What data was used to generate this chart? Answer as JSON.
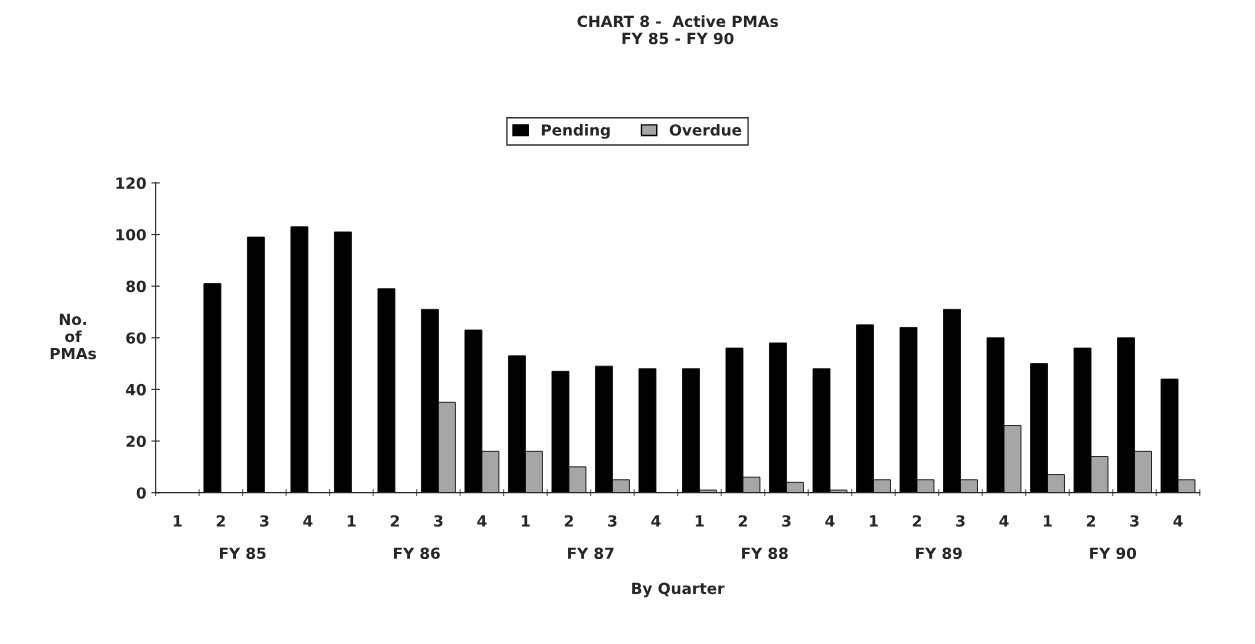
{
  "chart_data": {
    "type": "bar",
    "title": "CHART 8 -  Active PMAs\nFY 85 - FY 90",
    "xlabel": "By Quarter",
    "ylabel": "No.\nof\nPMAs",
    "categories": [
      "1",
      "2",
      "3",
      "4",
      "1",
      "2",
      "3",
      "4",
      "1",
      "2",
      "3",
      "4",
      "1",
      "2",
      "3",
      "4",
      "1",
      "2",
      "3",
      "4",
      "1",
      "2",
      "3",
      "4"
    ],
    "series": [
      {
        "name": "Pending",
        "color": "#000000",
        "values": [
          null,
          81,
          99,
          103,
          101,
          79,
          71,
          63,
          53,
          47,
          49,
          48,
          48,
          56,
          58,
          48,
          65,
          64,
          71,
          60,
          50,
          56,
          60,
          44
        ]
      },
      {
        "name": "Overdue",
        "color": "#a6a6a6",
        "values": [
          null,
          null,
          null,
          null,
          null,
          null,
          35,
          16,
          16,
          10,
          5,
          null,
          1,
          6,
          4,
          1,
          5,
          5,
          5,
          26,
          7,
          14,
          16,
          5
        ]
      }
    ],
    "annotations": [
      "FY 85",
      "FY 86",
      "FY 87",
      "FY 88",
      "FY 89",
      "FY 90"
    ],
    "ylim": [
      0,
      120
    ],
    "yticks": [
      0,
      20,
      40,
      60,
      80,
      100,
      120
    ],
    "grid": false,
    "legend": "top"
  }
}
